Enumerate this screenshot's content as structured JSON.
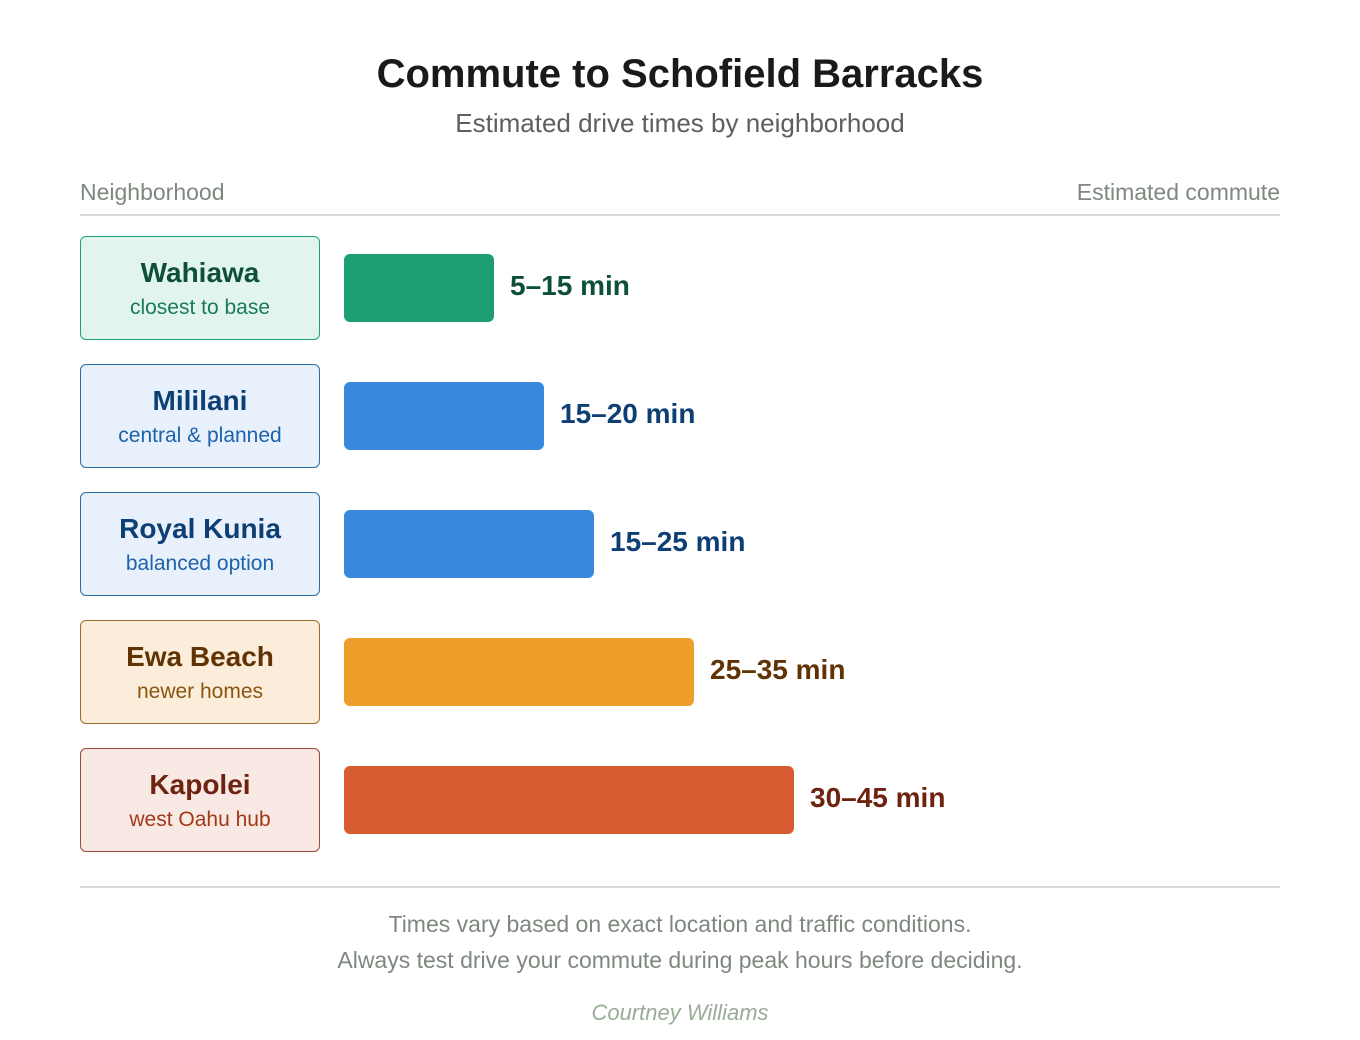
{
  "title": "Commute to Schofield Barracks",
  "subtitle": "Estimated drive times by neighborhood",
  "column_headers": {
    "left": "Neighborhood",
    "right": "Estimated commute"
  },
  "footnotes": [
    "Times vary based on exact location and traffic conditions.",
    "Always test drive your commute during peak hours before deciding."
  ],
  "author": "Courtney Williams",
  "chart_data": {
    "type": "bar",
    "orientation": "horizontal",
    "value_unit": "min",
    "categories": [
      "Wahiawa",
      "Mililani",
      "Royal Kunia",
      "Ewa Beach",
      "Kapolei"
    ],
    "series": [
      {
        "values": [
          15,
          20,
          25,
          35,
          45
        ],
        "ranges": [
          [
            5,
            15
          ],
          [
            15,
            20
          ],
          [
            15,
            25
          ],
          [
            25,
            35
          ],
          [
            30,
            45
          ]
        ]
      }
    ],
    "rows": [
      {
        "name": "Wahiawa",
        "note": "closest to base",
        "range_label": "5–15 min",
        "min": 5,
        "max": 15,
        "colors": {
          "bar": "#1e9e75",
          "text": "#0d4f3a",
          "note": "#1a7a5a",
          "box_bg": "#e1f5ee",
          "box_border": "#1e9e75"
        }
      },
      {
        "name": "Mililani",
        "note": "central & planned",
        "range_label": "15–20 min",
        "min": 15,
        "max": 20,
        "colors": {
          "bar": "#3889de",
          "text": "#0e3f74",
          "note": "#1d63aa",
          "box_bg": "#e7f0fb",
          "box_border": "#2f6aa8"
        }
      },
      {
        "name": "Royal Kunia",
        "note": "balanced option",
        "range_label": "15–25 min",
        "min": 15,
        "max": 25,
        "colors": {
          "bar": "#3889de",
          "text": "#0e3f74",
          "note": "#1d63aa",
          "box_bg": "#e7f0fb",
          "box_border": "#2f6aa8"
        }
      },
      {
        "name": "Ewa Beach",
        "note": "newer homes",
        "range_label": "25–35 min",
        "min": 25,
        "max": 35,
        "colors": {
          "bar": "#ee9e2a",
          "text": "#613304",
          "note": "#8a5510",
          "box_bg": "#fbedd9",
          "box_border": "#9a6a2e"
        }
      },
      {
        "name": "Kapolei",
        "note": "west Oahu hub",
        "range_label": "30–45 min",
        "min": 30,
        "max": 45,
        "colors": {
          "bar": "#d85b31",
          "text": "#6d2310",
          "note": "#a0391a",
          "box_bg": "#f9e9e4",
          "box_border": "#9a4b38"
        }
      }
    ]
  }
}
